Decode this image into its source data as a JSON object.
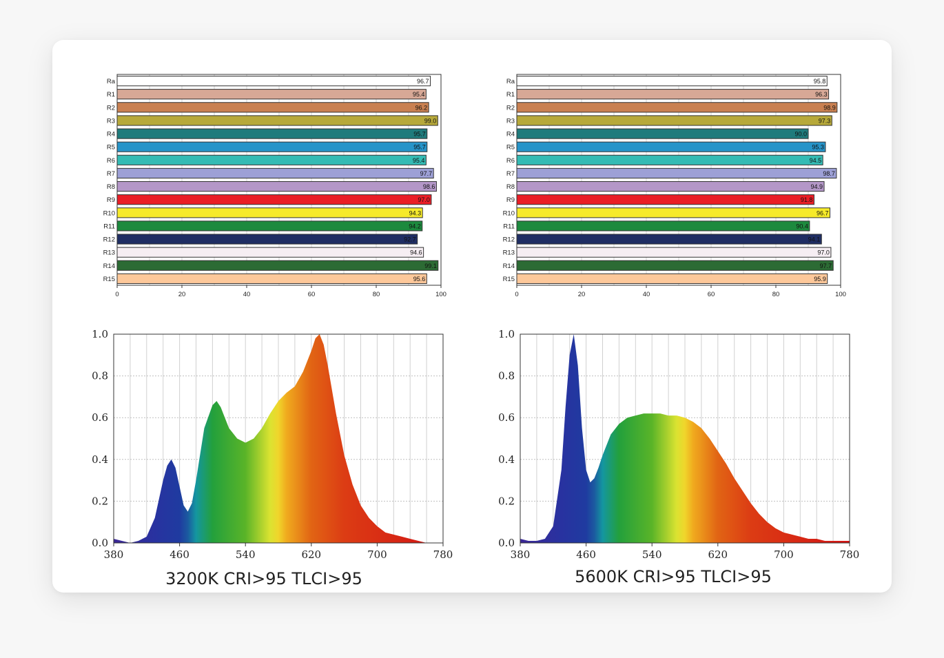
{
  "chart_data": [
    {
      "type": "bar",
      "orientation": "horizontal",
      "categories": [
        "Ra",
        "R1",
        "R2",
        "R3",
        "R4",
        "R5",
        "R6",
        "R7",
        "R8",
        "R9",
        "R10",
        "R11",
        "R12",
        "R13",
        "R14",
        "R15"
      ],
      "values": [
        96.7,
        95.4,
        96.2,
        99.0,
        95.7,
        95.7,
        95.4,
        97.7,
        98.6,
        97.0,
        94.3,
        94.2,
        92.7,
        94.6,
        99.1,
        95.6
      ],
      "labels": [
        "96.7",
        "95.4",
        "96.2",
        "99.0",
        "95.7",
        "95.7",
        "95.4",
        "97.7",
        "98.6",
        "97.0",
        "94.3",
        "94.2",
        "92.7",
        "94.6",
        "99.1",
        "95.6"
      ],
      "xlim": [
        0,
        100
      ],
      "xticks": [
        "0",
        "20",
        "40",
        "60",
        "80",
        "100"
      ],
      "grid": true
    },
    {
      "type": "bar",
      "orientation": "horizontal",
      "categories": [
        "Ra",
        "R1",
        "R2",
        "R3",
        "R4",
        "R5",
        "R6",
        "R7",
        "R8",
        "R9",
        "R10",
        "R11",
        "R12",
        "R13",
        "R14",
        "R15"
      ],
      "values": [
        95.8,
        96.3,
        98.9,
        97.3,
        90.0,
        95.3,
        94.5,
        98.7,
        94.9,
        91.8,
        96.7,
        90.4,
        94.1,
        97.0,
        97.7,
        95.9
      ],
      "labels": [
        "95.8",
        "96.3",
        "98.9",
        "97.3",
        "90.0",
        "95.3",
        "94.5",
        "98.7",
        "94.9",
        "91.8",
        "96.7",
        "90.4",
        "94.1",
        "97.0",
        "97.7",
        "95.9"
      ],
      "xlim": [
        0,
        100
      ],
      "xticks": [
        "0",
        "20",
        "40",
        "60",
        "80",
        "100"
      ],
      "grid": true
    },
    {
      "type": "area",
      "title": "3200K CRI>95 TLCI>95",
      "xlim": [
        380,
        780
      ],
      "ylim": [
        0,
        1
      ],
      "xticks": [
        "380",
        "460",
        "540",
        "620",
        "700",
        "780"
      ],
      "yticks": [
        "0.0",
        "0.2",
        "0.4",
        "0.6",
        "0.8",
        "1.0"
      ],
      "x": [
        380,
        390,
        400,
        410,
        420,
        430,
        440,
        445,
        450,
        455,
        460,
        465,
        470,
        475,
        480,
        490,
        500,
        505,
        510,
        515,
        520,
        530,
        540,
        550,
        560,
        570,
        580,
        590,
        600,
        610,
        620,
        625,
        630,
        635,
        640,
        650,
        660,
        670,
        680,
        690,
        700,
        710,
        720,
        730,
        740,
        750,
        760,
        770,
        780
      ],
      "y": [
        0.02,
        0.01,
        0.0,
        0.01,
        0.03,
        0.12,
        0.3,
        0.37,
        0.4,
        0.36,
        0.27,
        0.18,
        0.15,
        0.19,
        0.3,
        0.55,
        0.66,
        0.68,
        0.65,
        0.6,
        0.55,
        0.5,
        0.48,
        0.5,
        0.55,
        0.62,
        0.68,
        0.72,
        0.75,
        0.82,
        0.92,
        0.98,
        1.0,
        0.95,
        0.85,
        0.62,
        0.42,
        0.28,
        0.18,
        0.12,
        0.08,
        0.05,
        0.04,
        0.03,
        0.02,
        0.01,
        0.0,
        0.0,
        0.0
      ],
      "grid": true
    },
    {
      "type": "area",
      "title": "5600K CRI>95 TLCI>95",
      "xlim": [
        380,
        780
      ],
      "ylim": [
        0,
        1
      ],
      "xticks": [
        "380",
        "460",
        "540",
        "620",
        "700",
        "780"
      ],
      "yticks": [
        "0.0",
        "0.2",
        "0.4",
        "0.6",
        "0.8",
        "1.0"
      ],
      "x": [
        380,
        390,
        400,
        410,
        420,
        430,
        435,
        440,
        445,
        450,
        455,
        460,
        465,
        470,
        475,
        480,
        490,
        500,
        510,
        520,
        530,
        540,
        550,
        560,
        570,
        580,
        590,
        600,
        610,
        620,
        630,
        640,
        650,
        660,
        670,
        680,
        690,
        700,
        710,
        720,
        730,
        740,
        750,
        760,
        770,
        780
      ],
      "y": [
        0.02,
        0.01,
        0.01,
        0.02,
        0.08,
        0.35,
        0.65,
        0.9,
        1.0,
        0.85,
        0.55,
        0.35,
        0.29,
        0.31,
        0.36,
        0.42,
        0.52,
        0.57,
        0.6,
        0.61,
        0.62,
        0.62,
        0.62,
        0.61,
        0.61,
        0.6,
        0.58,
        0.55,
        0.5,
        0.44,
        0.38,
        0.31,
        0.25,
        0.19,
        0.14,
        0.1,
        0.07,
        0.05,
        0.04,
        0.03,
        0.02,
        0.02,
        0.01,
        0.01,
        0.01,
        0.01
      ],
      "grid": true
    }
  ],
  "colors": {
    "bars": [
      "#ffffff",
      "#d7a896",
      "#c98051",
      "#b7a93a",
      "#1f7b7c",
      "#2694c9",
      "#34bbb4",
      "#9da0d6",
      "#b497c8",
      "#ea1e26",
      "#f6ea2a",
      "#1d8a3e",
      "#1f2d63",
      "#f6eef3",
      "#2c6b34",
      "#fdc89a"
    ],
    "grid": "#d0d0d0",
    "axis": "#333333"
  }
}
